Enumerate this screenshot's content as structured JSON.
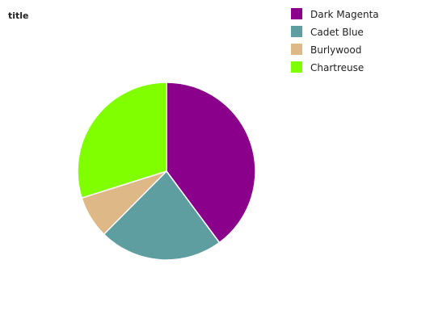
{
  "chart_data": {
    "type": "pie",
    "title": "title",
    "categories": [
      "Dark Magenta",
      "Cadet Blue",
      "Burlywood",
      "Chartreuse"
    ],
    "values": [
      38.3,
      21.7,
      7.4,
      28.7
    ],
    "colors": [
      "#8b008b",
      "#5f9ea0",
      "#deb887",
      "#7fff00"
    ],
    "start_angle_deg": 90,
    "direction": "clockwise",
    "legend_position": "right",
    "grid": false
  }
}
